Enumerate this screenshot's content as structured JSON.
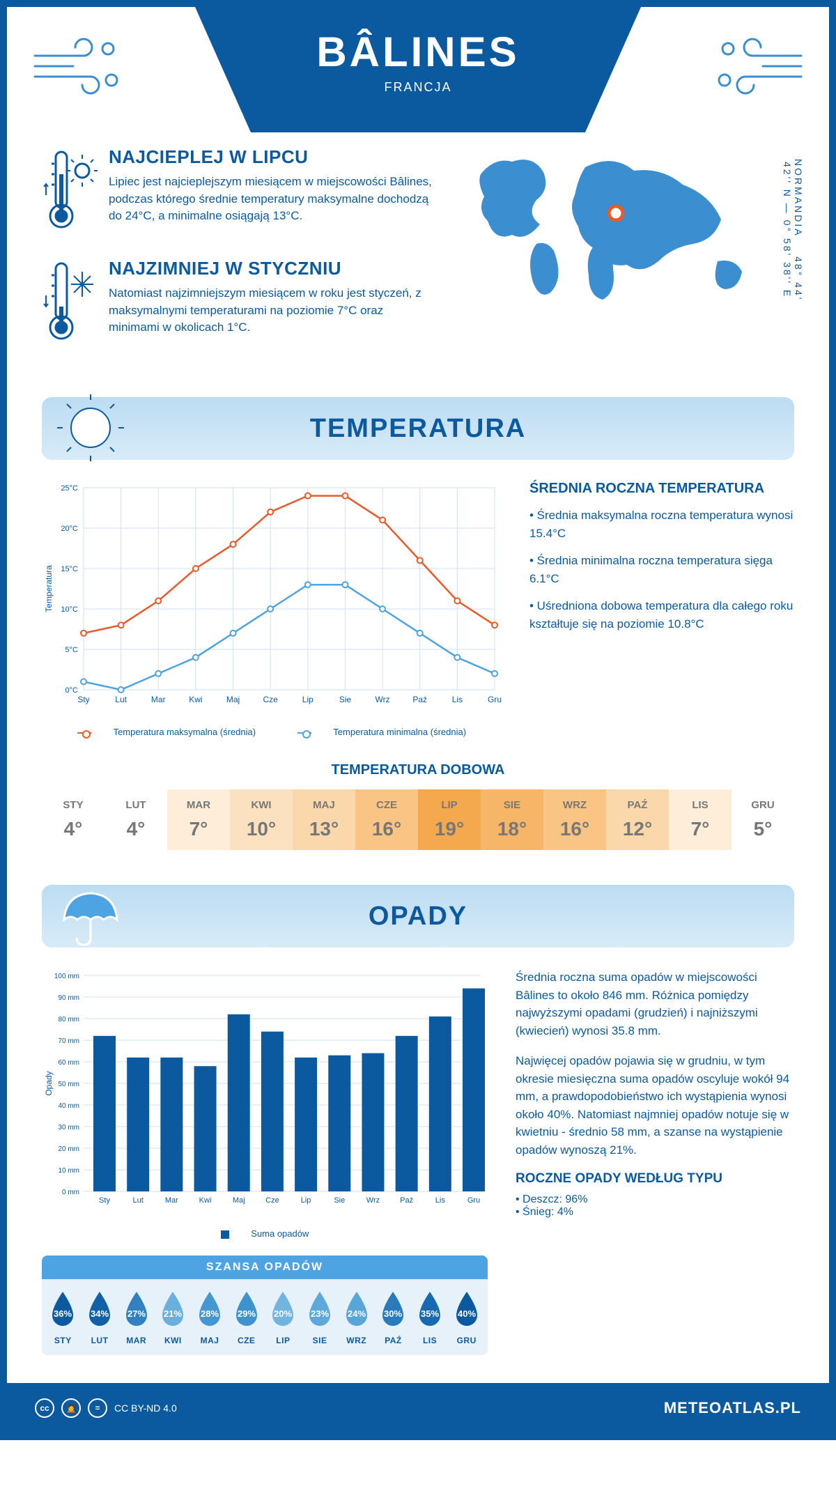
{
  "header": {
    "title": "BÂLINES",
    "country": "FRANCJA"
  },
  "intro": {
    "hot": {
      "title": "NAJCIEPLEJ W LIPCU",
      "text": "Lipiec jest najcieplejszym miesiącem w miejscowości Bâlines, podczas którego średnie temperatury maksymalne dochodzą do 24°C, a minimalne osiągają 13°C."
    },
    "cold": {
      "title": "NAJZIMNIEJ W STYCZNIU",
      "text": "Natomiast najzimniejszym miesiącem w roku jest styczeń, z maksymalnymi temperaturami na poziomie 7°C oraz minimami w okolicach 1°C."
    }
  },
  "coords": "48° 44' 42'' N — 0° 58' 38'' E",
  "region": "NORMANDIA",
  "sections": {
    "temperature": "TEMPERATURA",
    "precipitation": "OPADY"
  },
  "tempChart": {
    "ylabel": "Temperatura",
    "ylim": [
      0,
      25
    ],
    "yticks": [
      "0°C",
      "5°C",
      "10°C",
      "15°C",
      "20°C",
      "25°C"
    ],
    "xticks": [
      "Sty",
      "Lut",
      "Mar",
      "Kwi",
      "Maj",
      "Cze",
      "Lip",
      "Sie",
      "Wrz",
      "Paź",
      "Lis",
      "Gru"
    ],
    "max_color": "#e85a2a",
    "min_color": "#4ea3e2",
    "grid_color": "#cfe1f0",
    "max_series": [
      7,
      8,
      11,
      15,
      18,
      22,
      24,
      24,
      21,
      16,
      11,
      8
    ],
    "min_series": [
      1,
      0,
      2,
      4,
      7,
      10,
      13,
      13,
      10,
      7,
      4,
      2
    ],
    "legend": {
      "max": "Temperatura maksymalna (średnia)",
      "min": "Temperatura minimalna (średnia)"
    }
  },
  "tempStats": {
    "title": "ŚREDNIA ROCZNA TEMPERATURA",
    "b1": "• Średnia maksymalna roczna temperatura wynosi 15.4°C",
    "b2": "• Średnia minimalna roczna temperatura sięga 6.1°C",
    "b3": "• Uśredniona dobowa temperatura dla całego roku kształtuje się na poziomie 10.8°C"
  },
  "daily": {
    "title": "TEMPERATURA DOBOWA",
    "months": [
      "STY",
      "LUT",
      "MAR",
      "KWI",
      "MAJ",
      "CZE",
      "LIP",
      "SIE",
      "WRZ",
      "PAŹ",
      "LIS",
      "GRU"
    ],
    "values": [
      "4°",
      "4°",
      "7°",
      "10°",
      "13°",
      "16°",
      "19°",
      "18°",
      "16°",
      "12°",
      "7°",
      "5°"
    ],
    "colors": [
      "#ffffff",
      "#ffffff",
      "#fdedd9",
      "#fce1c1",
      "#fbd7ac",
      "#f9c484",
      "#f5a94f",
      "#f7b567",
      "#f9c484",
      "#fbd7ac",
      "#fdedd9",
      "#ffffff"
    ]
  },
  "precipChart": {
    "ylabel": "Opady",
    "ylim": [
      0,
      100
    ],
    "yticks": [
      "0 mm",
      "10 mm",
      "20 mm",
      "30 mm",
      "40 mm",
      "50 mm",
      "60 mm",
      "70 mm",
      "80 mm",
      "90 mm",
      "100 mm"
    ],
    "xticks": [
      "Sty",
      "Lut",
      "Mar",
      "Kwi",
      "Maj",
      "Cze",
      "Lip",
      "Sie",
      "Wrz",
      "Paź",
      "Lis",
      "Gru"
    ],
    "bar_color": "#0b5aa0",
    "grid_color": "#cfe1f0",
    "values": [
      72,
      62,
      62,
      58,
      82,
      74,
      62,
      63,
      64,
      72,
      81,
      94
    ],
    "legend": "Suma opadów"
  },
  "precipText": {
    "p1": "Średnia roczna suma opadów w miejscowości Bâlines to około 846 mm. Różnica pomiędzy najwyższymi opadami (grudzień) i najniższymi (kwiecień) wynosi 35.8 mm.",
    "p2": "Najwięcej opadów pojawia się w grudniu, w tym okresie miesięczna suma opadów oscyluje wokół 94 mm, a prawdopodobieństwo ich wystąpienia wynosi około 40%. Natomiast najmniej opadów notuje się w kwietniu - średnio 58 mm, a szanse na wystąpienie opadów wynoszą 21%."
  },
  "chance": {
    "title": "SZANSA OPADÓW",
    "months": [
      "STY",
      "LUT",
      "MAR",
      "KWI",
      "MAJ",
      "CZE",
      "LIP",
      "SIE",
      "WRZ",
      "PAŹ",
      "LIS",
      "GRU"
    ],
    "values": [
      "36%",
      "34%",
      "27%",
      "21%",
      "28%",
      "29%",
      "20%",
      "23%",
      "24%",
      "30%",
      "35%",
      "40%"
    ],
    "colors": [
      "#0b5aa0",
      "#1261a7",
      "#3181c0",
      "#6ab0de",
      "#4497d1",
      "#3e93cf",
      "#71b4e0",
      "#5ea9db",
      "#58a5d8",
      "#2a7bbc",
      "#176aaf",
      "#0b5aa0"
    ]
  },
  "byType": {
    "title": "ROCZNE OPADY WEDŁUG TYPU",
    "rain": "• Deszcz: 96%",
    "snow": "• Śnieg: 4%"
  },
  "footer": {
    "license": "CC BY-ND 4.0",
    "brand": "METEOATLAS.PL"
  }
}
